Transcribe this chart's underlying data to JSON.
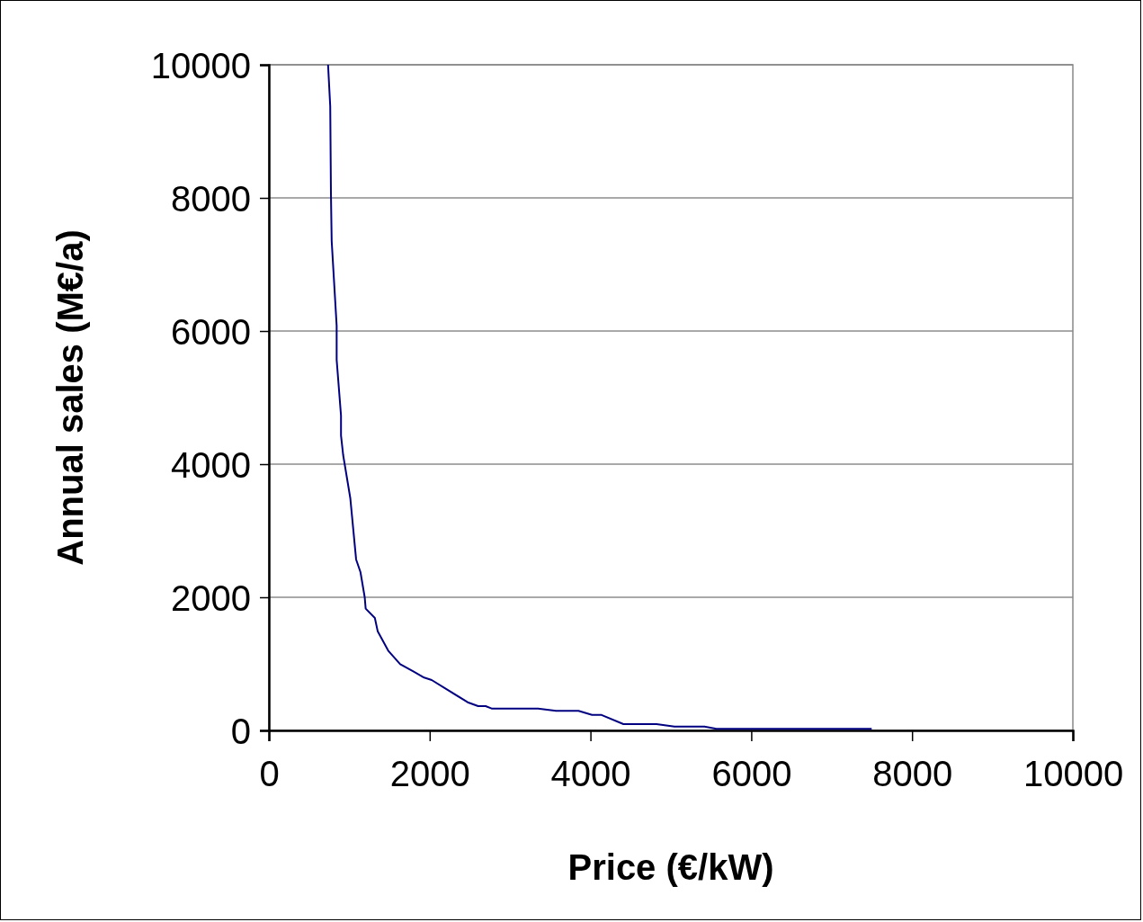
{
  "chart_data": {
    "type": "line",
    "xlabel": "Price (€/kW)",
    "ylabel": "Annual sales (M€/a)",
    "xlim": [
      0,
      10000
    ],
    "xticks": [
      0,
      2000,
      4000,
      6000,
      8000,
      10000
    ],
    "ylim": [
      0,
      10000
    ],
    "yticks": [
      0,
      2000,
      4000,
      6000,
      8000,
      10000
    ],
    "grid": "y",
    "marker": "none",
    "line_style": "solid",
    "series": [
      {
        "color": "#000080",
        "x": [
          736,
          763,
          772,
          781,
          843,
          843,
          897,
          897,
          924,
          1013,
          1085,
          1139,
          1192,
          1204,
          1318,
          1353,
          1484,
          1633,
          1801,
          1931,
          2025,
          2472,
          2603,
          2696,
          2770,
          3348,
          3572,
          3851,
          4019,
          4131,
          4410,
          4821,
          5045,
          5417,
          5567,
          7498
        ],
        "values": [
          10000,
          9378,
          8054,
          7351,
          6081,
          5568,
          4730,
          4432,
          4135,
          3486,
          2568,
          2378,
          2000,
          1829,
          1689,
          1491,
          1198,
          995,
          883,
          793,
          757,
          423,
          365,
          365,
          329,
          329,
          293,
          293,
          234,
          234,
          95,
          95,
          58,
          58,
          23,
          23
        ]
      }
    ]
  }
}
